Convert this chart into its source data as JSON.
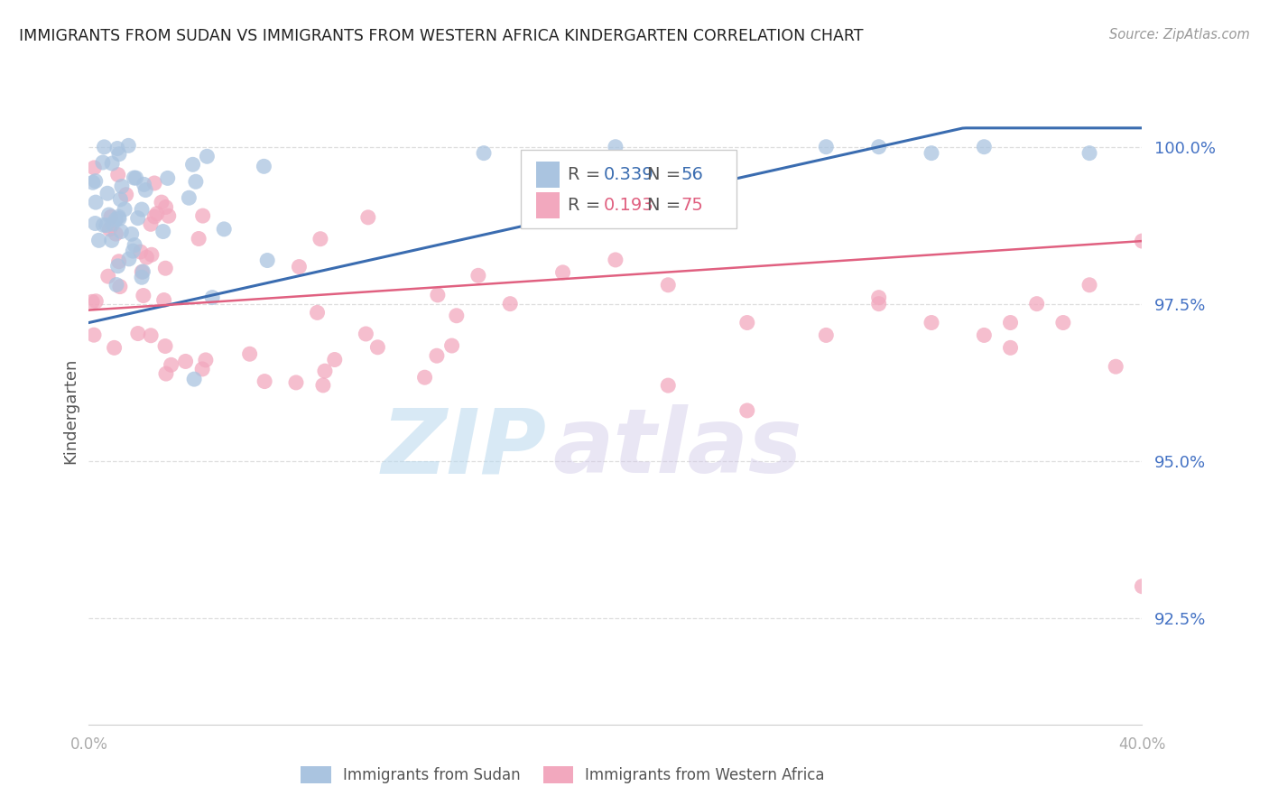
{
  "title": "IMMIGRANTS FROM SUDAN VS IMMIGRANTS FROM WESTERN AFRICA KINDERGARTEN CORRELATION CHART",
  "source": "Source: ZipAtlas.com",
  "ylabel": "Kindergarten",
  "ytick_labels": [
    "100.0%",
    "97.5%",
    "95.0%",
    "92.5%"
  ],
  "ytick_values": [
    1.0,
    0.975,
    0.95,
    0.925
  ],
  "xlim": [
    0.0,
    0.4
  ],
  "ylim": [
    0.908,
    1.008
  ],
  "blue_color": "#aac4e0",
  "pink_color": "#f2a8be",
  "blue_line_color": "#3a6cb0",
  "pink_line_color": "#e06080",
  "legend_r_blue": "0.339",
  "legend_n_blue": "56",
  "legend_r_pink": "0.193",
  "legend_n_pink": "75",
  "label_blue": "Immigrants from Sudan",
  "label_pink": "Immigrants from Western Africa",
  "watermark_zip": "ZIP",
  "watermark_atlas": "atlas",
  "background_color": "#ffffff",
  "grid_color": "#dddddd",
  "ytick_color": "#4472c4",
  "xtick_color": "#aaaaaa",
  "title_color": "#222222",
  "source_color": "#999999",
  "ylabel_color": "#555555"
}
